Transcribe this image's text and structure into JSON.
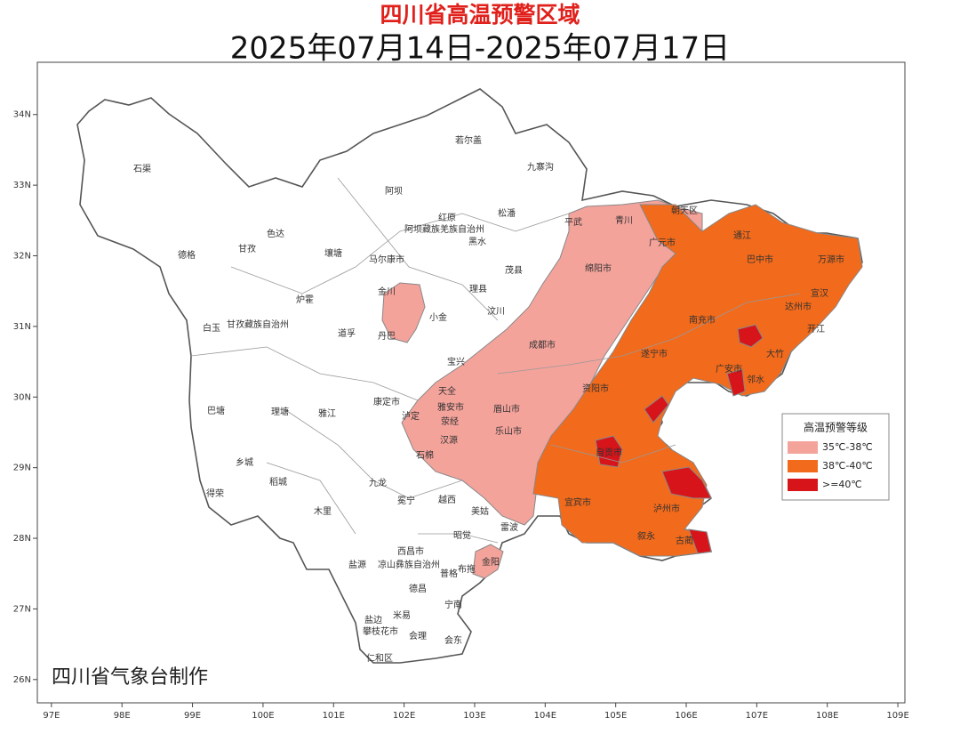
{
  "title": "四川省高温预警区域",
  "subtitle": "2025年07月14日-2025年07月17日",
  "credit": "四川省气象台制作",
  "legend": {
    "title": "高温预警等级",
    "items": [
      {
        "label": "35℃-38℃",
        "color": "#f4a39b"
      },
      {
        "label": "38℃-40℃",
        "color": "#f26a1b"
      },
      {
        "label": ">=40℃",
        "color": "#d7141a"
      }
    ]
  },
  "axes": {
    "xlim": [
      96.8,
      109.1
    ],
    "ylim": [
      25.67,
      34.74
    ],
    "xticks": [
      {
        "value": 97,
        "label": "97E"
      },
      {
        "value": 98,
        "label": "98E"
      },
      {
        "value": 99,
        "label": "99E"
      },
      {
        "value": 100,
        "label": "100E"
      },
      {
        "value": 101,
        "label": "101E"
      },
      {
        "value": 102,
        "label": "102E"
      },
      {
        "value": 103,
        "label": "103E"
      },
      {
        "value": 104,
        "label": "104E"
      },
      {
        "value": 105,
        "label": "105E"
      },
      {
        "value": 106,
        "label": "106E"
      },
      {
        "value": 107,
        "label": "107E"
      },
      {
        "value": 108,
        "label": "108E"
      },
      {
        "value": 109,
        "label": "109E"
      }
    ],
    "yticks": [
      {
        "value": 26,
        "label": "26N"
      },
      {
        "value": 27,
        "label": "27N"
      },
      {
        "value": 28,
        "label": "28N"
      },
      {
        "value": 29,
        "label": "29N"
      },
      {
        "value": 30,
        "label": "30N"
      },
      {
        "value": 31,
        "label": "31N"
      },
      {
        "value": 32,
        "label": "32N"
      },
      {
        "value": 33,
        "label": "33N"
      },
      {
        "value": 34,
        "label": "34N"
      }
    ]
  },
  "places": [
    "石渠",
    "德格",
    "甘孜",
    "色达",
    "炉霍",
    "白玉",
    "甘孜藏族自治州",
    "道孚",
    "巴塘",
    "理塘",
    "雅江",
    "乡城",
    "稻城",
    "得荣",
    "木里",
    "九龙",
    "康定市",
    "泸定",
    "丹巴",
    "金川",
    "小金",
    "马尔康市",
    "壤塘",
    "阿坝",
    "红原",
    "阿坝藏族羌族自治州",
    "若尔盖",
    "九寨沟",
    "松潘",
    "黑水",
    "茂县",
    "理县",
    "汶川",
    "平武",
    "青川",
    "朝天区",
    "广元市",
    "绵阳市",
    "巴中市",
    "万源市",
    "通江",
    "达州市",
    "宣汉",
    "开江",
    "大竹",
    "广安市",
    "邻水",
    "南充市",
    "遂宁市",
    "成都市",
    "宝兴",
    "天全",
    "雅安市",
    "荥经",
    "汉源",
    "石棉",
    "乐山市",
    "眉山市",
    "资阳市",
    "自贡市",
    "宜宾市",
    "泸州市",
    "冕宁",
    "越西",
    "美姑",
    "雷波",
    "昭觉",
    "普格",
    "布拖",
    "金阳",
    "西昌市",
    "凉山彝族自治州",
    "德昌",
    "宁南",
    "会东",
    "会理",
    "米易",
    "盐边",
    "攀枝花市",
    "仁和区",
    "盐源",
    "古蔺",
    "叙永"
  ]
}
